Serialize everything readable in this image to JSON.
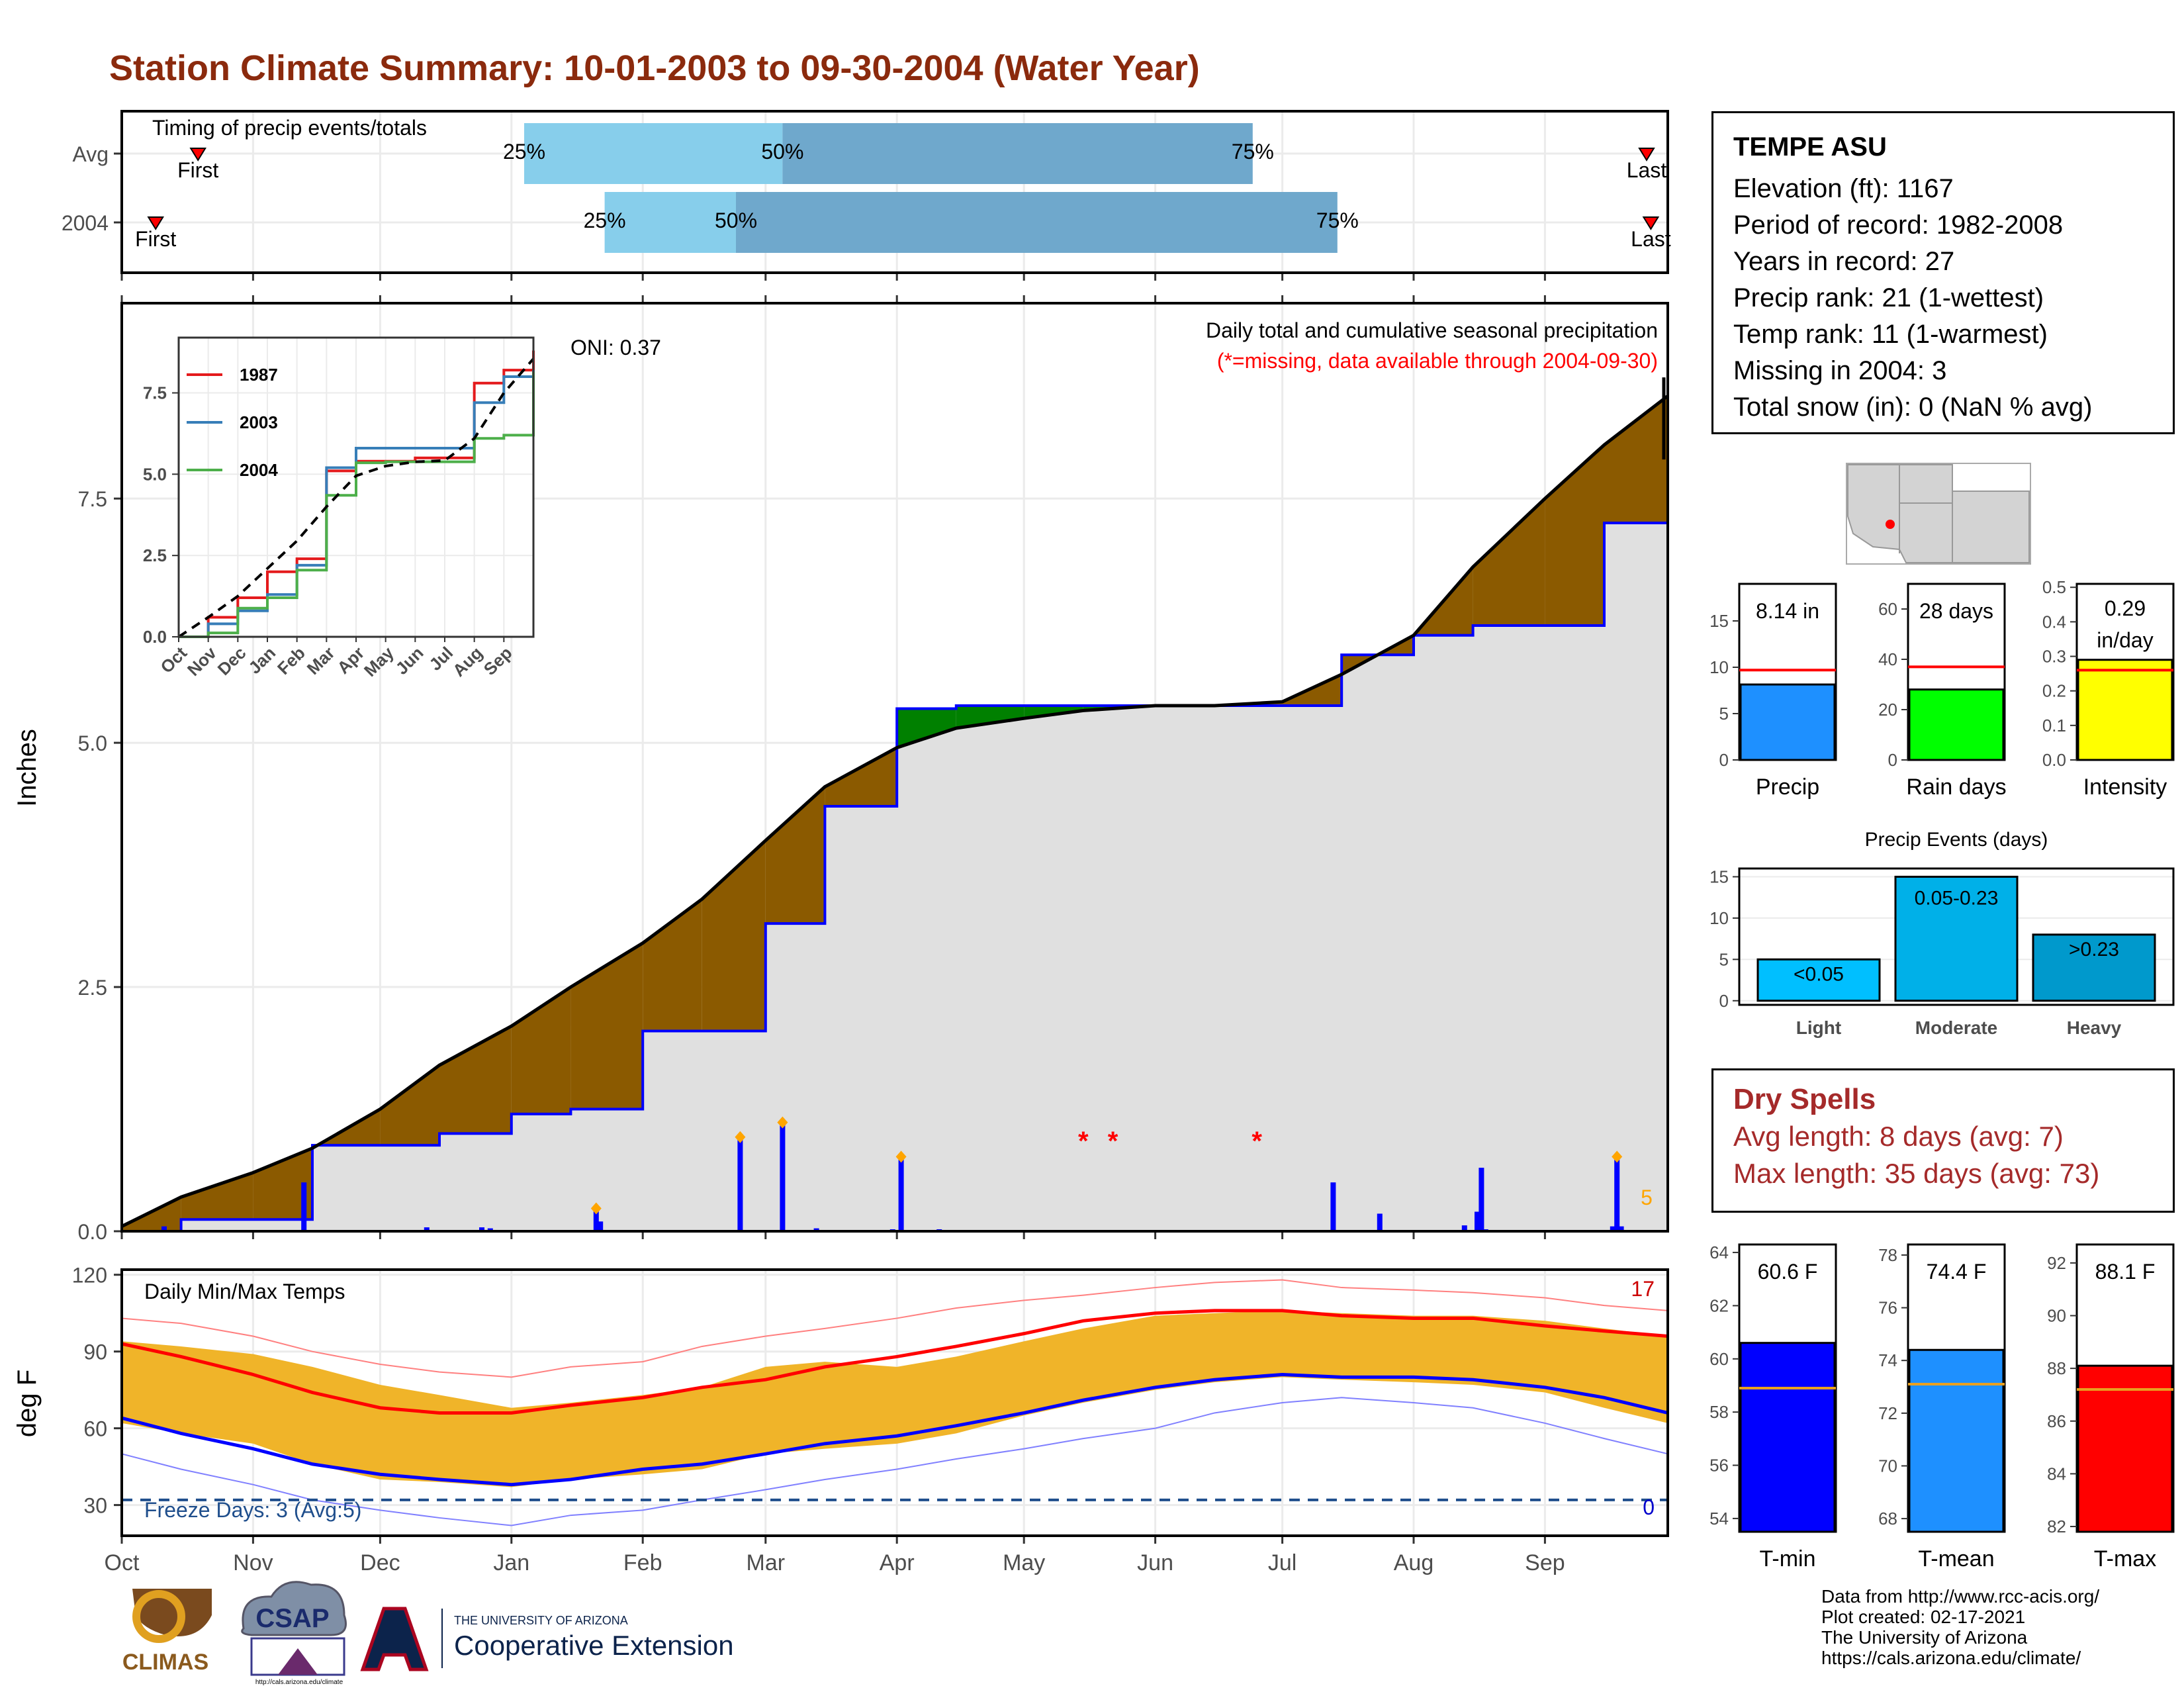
{
  "title": "Station Climate Summary: 10-01-2003 to 09-30-2004 (Water Year)",
  "station": {
    "name": "TEMPE ASU",
    "lines": [
      "Elevation (ft): 1167",
      "Period of record: 1982-2008",
      "Years in record: 27",
      "Precip rank: 21 (1-wettest)",
      "Temp rank: 11 (1-warmest)",
      "Missing in 2004: 3",
      "Total snow (in): 0 (NaN % avg)"
    ]
  },
  "timing": {
    "title": "Timing of precip events/totals",
    "rows": [
      "Avg",
      "2004"
    ],
    "first_label": "First",
    "last_label": "Last",
    "avg": {
      "first": "2003-10-19",
      "p25": "2004-01-04",
      "p50": "2004-03-05",
      "p75": "2004-06-24",
      "last": "2004-09-25"
    },
    "y2004": {
      "first": "2003-10-09",
      "p25": "2004-01-23",
      "p50": "2004-02-23",
      "p75": "2004-07-14",
      "last": "2004-09-26"
    },
    "pct_labels": [
      "25%",
      "50%",
      "75%"
    ]
  },
  "precip_panel": {
    "ylabel": "Inches",
    "y_ticks": [
      "0.0",
      "2.5",
      "5.0",
      "7.5"
    ],
    "oni": "ONI: 0.37",
    "caption": "Daily total and cumulative seasonal precipitation",
    "missing_note": "(*=missing, data available through 2004-09-30)",
    "missing_marker": "*",
    "count_label": "5",
    "legend": [
      "1987",
      "2003",
      "2004"
    ],
    "inset_y_ticks": [
      "0.0",
      "2.5",
      "5.0",
      "7.5"
    ],
    "inset_x_ticks": [
      "Oct",
      "Nov",
      "Dec",
      "Jan",
      "Feb",
      "Mar",
      "Apr",
      "May",
      "Jun",
      "Jul",
      "Aug",
      "Sep"
    ]
  },
  "temp_panel": {
    "ylabel": "deg F",
    "title": "Daily Min/Max Temps",
    "y_ticks": [
      "30",
      "60",
      "90",
      "120"
    ],
    "freeze_text": "Freeze Days: 3 (Avg:5)",
    "count_high": "17",
    "count_low": "0",
    "x_ticks": [
      "Oct",
      "Nov",
      "Dec",
      "Jan",
      "Feb",
      "Mar",
      "Apr",
      "May",
      "Jun",
      "Jul",
      "Aug",
      "Sep"
    ]
  },
  "bar_stats": [
    {
      "label": "Precip",
      "value_text": "8.14 in",
      "ticks": [
        "0",
        "5",
        "10",
        "15"
      ]
    },
    {
      "label": "Rain days",
      "value_text": "28 days",
      "ticks": [
        "0",
        "20",
        "40",
        "60"
      ]
    },
    {
      "label": "Intensity",
      "value_text": "0.29",
      "value_text2": "in/day",
      "ticks": [
        "0.0",
        "0.1",
        "0.2",
        "0.3",
        "0.4",
        "0.5"
      ]
    }
  ],
  "precip_events": {
    "title": "Precip Events (days)",
    "ticks": [
      "0",
      "5",
      "10",
      "15"
    ],
    "categories": [
      "Light",
      "Moderate",
      "Heavy"
    ],
    "bar_labels": [
      "<0.05",
      "0.05-0.23",
      ">0.23"
    ]
  },
  "dry_spells": {
    "title": "Dry Spells",
    "avg_length": "Avg length: 8 days (avg: 7)",
    "max_length": "Max length: 35 days (avg: 73)"
  },
  "temp_stats": [
    {
      "label": "T-min",
      "value_text": "60.6 F",
      "ticks": [
        "54",
        "56",
        "58",
        "60",
        "62",
        "64"
      ]
    },
    {
      "label": "T-mean",
      "value_text": "74.4 F",
      "ticks": [
        "68",
        "70",
        "72",
        "74",
        "76",
        "78"
      ]
    },
    {
      "label": "T-max",
      "value_text": "88.1 F",
      "ticks": [
        "82",
        "84",
        "86",
        "88",
        "90",
        "92"
      ]
    }
  ],
  "credits": [
    "Data from http://www.rcc-acis.org/",
    "Plot created: 02-17-2021",
    "The University of Arizona",
    "https://cals.arizona.edu/climate/"
  ],
  "logos": {
    "climas": "CLIMAS",
    "csap": "CSAP",
    "csap_url": "http://cals.arizona.edu/climate",
    "ua_small": "THE UNIVERSITY OF ARIZONA",
    "ua_big": "Cooperative Extension"
  },
  "colors": {
    "title": "#8b2a0d",
    "above_avg": "#8b5a00",
    "below_avg": "#008000",
    "cum_line": "#0000ff",
    "fill_gray": "#e0e0e0",
    "temp_band": "#f0b429",
    "avg_max": "#ff0000",
    "avg_min": "#0000ff",
    "p25_bar": "#87ceeb",
    "p50_bar": "#6fa8cc",
    "precip_bar": "#1e90ff",
    "raindays_bar": "#00ff00",
    "intensity_bar": "#ffff00",
    "light_bar": "#00bfff",
    "moderate_bar": "#00b0e8",
    "heavy_bar": "#0099cc",
    "tmin_bar": "#0000ff",
    "tmean_bar": "#1e90ff",
    "tmax_bar": "#ff0000",
    "avg_line": "#ff0000",
    "avg_line_temp": "#e8a020"
  },
  "chart_data": [
    {
      "type": "line",
      "name": "cumulative-precip",
      "xlabel": "",
      "ylabel": "Inches",
      "ylim": [
        0,
        9.5
      ],
      "x_dates": [
        "2003-10-01",
        "2003-10-15",
        "2003-11-01",
        "2003-11-15",
        "2003-12-01",
        "2003-12-15",
        "2004-01-01",
        "2004-01-15",
        "2004-02-01",
        "2004-02-15",
        "2004-03-01",
        "2004-03-15",
        "2004-04-01",
        "2004-04-15",
        "2004-05-01",
        "2004-05-15",
        "2004-06-01",
        "2004-06-15",
        "2004-07-01",
        "2004-07-15",
        "2004-08-01",
        "2004-08-15",
        "2004-09-01",
        "2004-09-15",
        "2004-09-30"
      ],
      "avg_cumulative": [
        0.05,
        0.35,
        0.6,
        0.85,
        1.25,
        1.7,
        2.1,
        2.5,
        2.95,
        3.4,
        4.0,
        4.55,
        4.95,
        5.15,
        5.25,
        5.33,
        5.38,
        5.38,
        5.42,
        5.7,
        6.1,
        6.8,
        7.5,
        8.05,
        8.55
      ],
      "cumulative_2004": [
        0.0,
        0.12,
        0.12,
        0.88,
        0.88,
        1.0,
        1.2,
        1.25,
        2.05,
        2.05,
        3.15,
        4.35,
        5.35,
        5.38,
        5.38,
        5.38,
        5.38,
        5.38,
        5.38,
        5.9,
        6.1,
        6.2,
        6.2,
        7.25,
        8.15
      ],
      "daily_events": [
        {
          "date": "2003-10-11",
          "value": 0.05
        },
        {
          "date": "2003-11-13",
          "value": 0.5
        },
        {
          "date": "2003-12-12",
          "value": 0.04
        },
        {
          "date": "2003-12-25",
          "value": 0.04
        },
        {
          "date": "2003-12-27",
          "value": 0.03
        },
        {
          "date": "2004-01-21",
          "value": 0.22
        },
        {
          "date": "2004-01-22",
          "value": 0.1
        },
        {
          "date": "2004-02-24",
          "value": 0.95
        },
        {
          "date": "2004-03-05",
          "value": 1.1
        },
        {
          "date": "2004-03-13",
          "value": 0.03
        },
        {
          "date": "2004-03-31",
          "value": 0.02
        },
        {
          "date": "2004-04-02",
          "value": 0.75
        },
        {
          "date": "2004-04-11",
          "value": 0.02
        },
        {
          "date": "2004-07-13",
          "value": 0.5
        },
        {
          "date": "2004-07-24",
          "value": 0.18
        },
        {
          "date": "2004-08-13",
          "value": 0.06
        },
        {
          "date": "2004-08-16",
          "value": 0.2
        },
        {
          "date": "2004-08-17",
          "value": 0.65
        },
        {
          "date": "2004-08-18",
          "value": 0.02
        },
        {
          "date": "2004-09-17",
          "value": 0.05
        },
        {
          "date": "2004-09-18",
          "value": 0.75
        },
        {
          "date": "2004-09-19",
          "value": 0.05
        }
      ],
      "marked_events": [
        "2004-01-21",
        "2004-02-24",
        "2004-03-05",
        "2004-04-02",
        "2004-09-18"
      ],
      "missing_dates": [
        "2004-05-15",
        "2004-05-22",
        "2004-06-25"
      ],
      "record_tick_value": 9.5
    },
    {
      "type": "line",
      "name": "inset-cumulative",
      "series": [
        {
          "name": "1987",
          "x_months": [
            0,
            1,
            2,
            3,
            4,
            5,
            6,
            7,
            8,
            9,
            10,
            11,
            12
          ],
          "values": [
            0,
            0.6,
            1.2,
            2.0,
            2.4,
            5.1,
            5.4,
            5.4,
            5.5,
            5.5,
            7.8,
            8.2,
            8.8
          ]
        },
        {
          "name": "2003",
          "x_months": [
            0,
            1,
            2,
            3,
            4,
            5,
            6,
            7,
            8,
            9,
            10,
            11,
            12
          ],
          "values": [
            0,
            0.4,
            0.8,
            1.3,
            2.2,
            5.2,
            5.8,
            5.8,
            5.8,
            5.8,
            7.2,
            8.0,
            8.2
          ]
        },
        {
          "name": "2004",
          "x_months": [
            0,
            1,
            2,
            3,
            4,
            5,
            6,
            7,
            8,
            9,
            10,
            11,
            12
          ],
          "values": [
            0,
            0.12,
            0.88,
            1.2,
            2.05,
            4.35,
            5.35,
            5.38,
            5.38,
            5.38,
            6.1,
            6.2,
            8.15
          ]
        }
      ],
      "avg_values": [
        0,
        0.6,
        1.25,
        2.1,
        2.95,
        4.0,
        4.95,
        5.25,
        5.38,
        5.42,
        6.1,
        7.5,
        8.55
      ],
      "ylim": [
        0,
        9.2
      ]
    },
    {
      "type": "area",
      "name": "daily-temps",
      "ylabel": "deg F",
      "ylim": [
        18,
        122
      ],
      "freeze_line": 32,
      "x_dates": [
        "2003-10-01",
        "2003-10-15",
        "2003-11-01",
        "2003-11-15",
        "2003-12-01",
        "2003-12-15",
        "2004-01-01",
        "2004-01-15",
        "2004-02-01",
        "2004-02-15",
        "2004-03-01",
        "2004-03-15",
        "2004-04-01",
        "2004-04-15",
        "2004-05-01",
        "2004-05-15",
        "2004-06-01",
        "2004-06-15",
        "2004-07-01",
        "2004-07-15",
        "2004-08-01",
        "2004-08-15",
        "2004-09-01",
        "2004-09-15",
        "2004-09-30"
      ],
      "daily_max": [
        94,
        92,
        89,
        84,
        77,
        73,
        68,
        70,
        73,
        76,
        84,
        86,
        84,
        88,
        94,
        99,
        104,
        105,
        106,
        105,
        104,
        104,
        102,
        99,
        96
      ],
      "daily_min": [
        62,
        58,
        54,
        46,
        40,
        39,
        37,
        40,
        42,
        44,
        50,
        52,
        54,
        58,
        65,
        70,
        75,
        78,
        80,
        79,
        78,
        77,
        74,
        68,
        62
      ],
      "avg_max": [
        93,
        88,
        81,
        74,
        68,
        66,
        66,
        69,
        72,
        76,
        79,
        84,
        88,
        92,
        97,
        102,
        105,
        106,
        106,
        104,
        103,
        103,
        100,
        98,
        96
      ],
      "avg_min": [
        64,
        58,
        52,
        46,
        42,
        40,
        38,
        40,
        44,
        46,
        50,
        54,
        57,
        61,
        66,
        71,
        76,
        79,
        81,
        80,
        80,
        79,
        76,
        72,
        66
      ],
      "record_max": [
        103,
        101,
        96,
        90,
        85,
        82,
        80,
        84,
        86,
        92,
        96,
        99,
        103,
        107,
        110,
        112,
        115,
        117,
        118,
        115,
        114,
        113,
        111,
        108,
        106
      ],
      "record_min": [
        50,
        44,
        38,
        32,
        28,
        25,
        22,
        26,
        28,
        32,
        36,
        40,
        44,
        48,
        52,
        56,
        60,
        66,
        70,
        72,
        70,
        68,
        62,
        56,
        50
      ]
    },
    {
      "type": "bar",
      "name": "precip-total",
      "categories": [
        "Precip"
      ],
      "values": [
        8.14
      ],
      "avg": 9.7,
      "ylim": [
        0,
        19
      ]
    },
    {
      "type": "bar",
      "name": "rain-days",
      "categories": [
        "Rain days"
      ],
      "values": [
        28
      ],
      "avg": 37,
      "ylim": [
        0,
        70
      ]
    },
    {
      "type": "bar",
      "name": "intensity",
      "categories": [
        "Intensity"
      ],
      "values": [
        0.29
      ],
      "avg": 0.26,
      "ylim": [
        0,
        0.51
      ]
    },
    {
      "type": "bar",
      "name": "precip-events",
      "categories": [
        "Light",
        "Moderate",
        "Heavy"
      ],
      "values": [
        5,
        15,
        8
      ],
      "ylim": [
        -0.5,
        16
      ]
    },
    {
      "type": "bar",
      "name": "tmin",
      "categories": [
        "T-min"
      ],
      "values": [
        60.6
      ],
      "avg": 58.9,
      "ylim": [
        53.5,
        64.3
      ]
    },
    {
      "type": "bar",
      "name": "tmean",
      "categories": [
        "T-mean"
      ],
      "values": [
        74.4
      ],
      "avg": 73.1,
      "ylim": [
        67.5,
        78.4
      ]
    },
    {
      "type": "bar",
      "name": "tmax",
      "categories": [
        "T-max"
      ],
      "values": [
        88.1
      ],
      "avg": 87.2,
      "ylim": [
        81.8,
        92.7
      ]
    }
  ]
}
